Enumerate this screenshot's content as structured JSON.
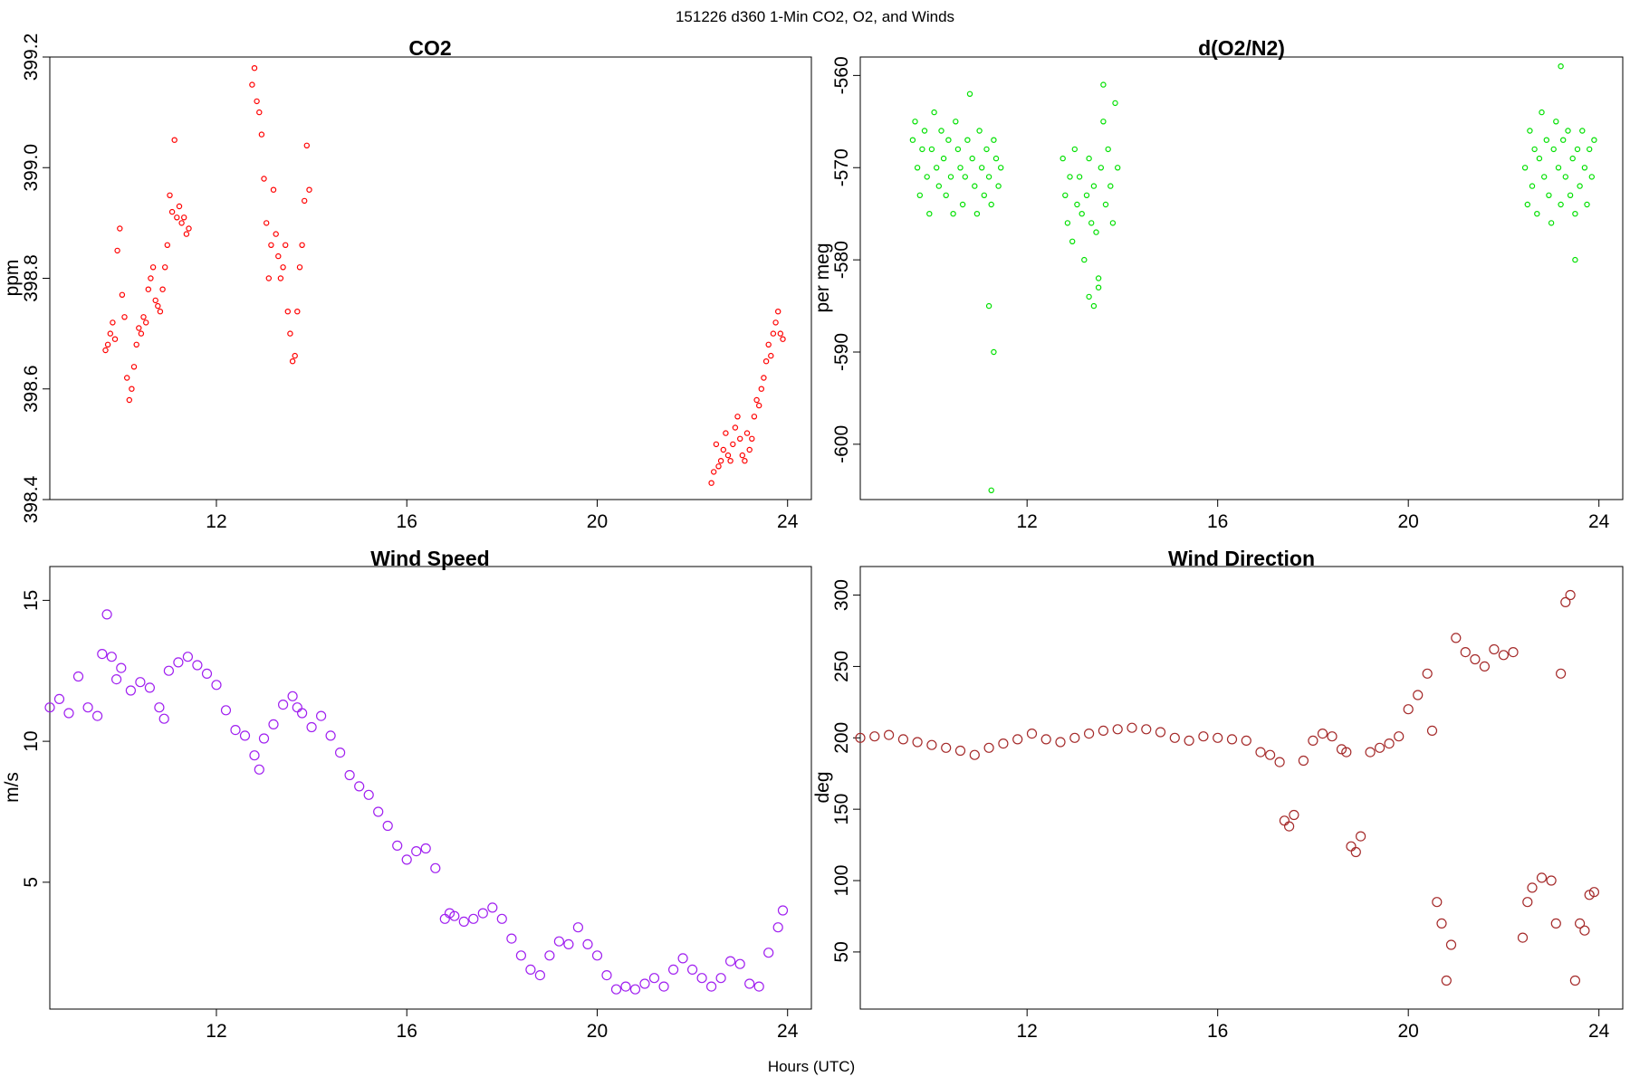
{
  "figure": {
    "suptitle": "151226   d360   1-Min CO2, O2, and Winds",
    "xlabel": "Hours (UTC)"
  },
  "chart_data": [
    {
      "id": "co2",
      "type": "scatter",
      "title": "CO2",
      "xlabel": "",
      "ylabel": "ppm",
      "xlim": [
        8.5,
        24.5
      ],
      "ylim": [
        398.4,
        399.2
      ],
      "xticks": [
        12,
        16,
        20,
        24
      ],
      "yticks": [
        398.4,
        398.6,
        398.8,
        399.0,
        399.2
      ],
      "ytick_labels": [
        "398.4",
        "398.6",
        "398.8",
        "399.0",
        "399.2"
      ],
      "ytick_rotation": "vertical",
      "marker_color": "#ff0000",
      "highlight_color": "#000000",
      "marker": "small-open-circle",
      "series": [
        {
          "x": [
            9.67,
            9.72,
            9.77,
            9.82,
            9.87,
            9.92,
            9.97,
            10.02,
            10.07,
            10.12,
            10.17,
            10.22,
            10.27,
            10.32,
            10.37,
            10.42,
            10.47,
            10.52,
            10.57,
            10.62,
            10.67,
            10.72,
            10.77,
            10.82,
            10.87,
            10.92,
            10.97,
            11.02,
            11.07,
            11.12,
            11.17,
            11.22,
            11.27,
            11.32,
            11.37,
            11.42,
            12.75,
            12.8,
            12.85,
            12.9,
            12.95,
            13.0,
            13.05,
            13.1,
            13.15,
            13.2,
            13.25,
            13.3,
            13.35,
            13.4,
            13.45,
            13.5,
            13.55,
            13.6,
            13.65,
            13.7,
            13.75,
            13.8,
            13.85,
            13.9,
            13.95,
            22.4,
            22.45,
            22.5,
            22.55,
            22.6,
            22.65,
            22.7,
            22.75,
            22.8,
            22.85,
            22.9,
            22.95,
            23.0,
            23.05,
            23.1,
            23.15,
            23.2,
            23.25,
            23.3,
            23.35,
            23.4,
            23.45,
            23.5,
            23.55,
            23.6,
            23.65,
            23.7,
            23.75,
            23.8,
            23.85,
            23.9
          ],
          "y": [
            398.67,
            398.68,
            398.7,
            398.72,
            398.69,
            398.85,
            398.89,
            398.77,
            398.73,
            398.62,
            398.58,
            398.6,
            398.64,
            398.68,
            398.71,
            398.7,
            398.73,
            398.72,
            398.78,
            398.8,
            398.82,
            398.76,
            398.75,
            398.74,
            398.78,
            398.82,
            398.86,
            398.95,
            398.92,
            399.05,
            398.91,
            398.93,
            398.9,
            398.91,
            398.88,
            398.89,
            399.15,
            399.18,
            399.12,
            399.1,
            399.06,
            398.98,
            398.9,
            398.8,
            398.86,
            398.96,
            398.88,
            398.84,
            398.8,
            398.82,
            398.86,
            398.74,
            398.7,
            398.65,
            398.66,
            398.74,
            398.82,
            398.86,
            398.94,
            399.04,
            398.96,
            398.43,
            398.45,
            398.5,
            398.46,
            398.47,
            398.49,
            398.52,
            398.48,
            398.47,
            398.5,
            398.53,
            398.55,
            398.51,
            398.48,
            398.47,
            398.52,
            398.49,
            398.51,
            398.55,
            398.58,
            398.57,
            398.6,
            398.62,
            398.65,
            398.68,
            398.66,
            398.7,
            398.72,
            398.74,
            398.7,
            398.69
          ]
        }
      ]
    },
    {
      "id": "o2n2",
      "type": "scatter",
      "title": "d(O2/N2)",
      "xlabel": "",
      "ylabel": "per meg",
      "xlim": [
        8.5,
        24.5
      ],
      "ylim": [
        -606,
        -558
      ],
      "xticks": [
        12,
        16,
        20,
        24
      ],
      "yticks": [
        -600,
        -590,
        -580,
        -570,
        -560
      ],
      "ytick_labels": [
        "-600",
        "-590",
        "-580",
        "-570",
        "-560"
      ],
      "ytick_rotation": "vertical",
      "marker_color": "#00e000",
      "highlight_color": "#000000",
      "marker": "small-open-circle",
      "series": [
        {
          "x": [
            9.6,
            9.65,
            9.7,
            9.75,
            9.8,
            9.85,
            9.9,
            9.95,
            10.0,
            10.05,
            10.1,
            10.15,
            10.2,
            10.25,
            10.3,
            10.35,
            10.4,
            10.45,
            10.5,
            10.55,
            10.6,
            10.65,
            10.7,
            10.75,
            10.8,
            10.85,
            10.9,
            10.95,
            11.0,
            11.05,
            11.1,
            11.15,
            11.2,
            11.25,
            11.3,
            11.35,
            11.4,
            11.45,
            11.2,
            11.3,
            11.25,
            12.75,
            12.8,
            12.85,
            12.9,
            12.95,
            13.0,
            13.05,
            13.1,
            13.15,
            13.2,
            13.25,
            13.3,
            13.35,
            13.4,
            13.45,
            13.5,
            13.55,
            13.6,
            13.65,
            13.7,
            13.75,
            13.8,
            13.85,
            13.9,
            13.5,
            13.4,
            13.3,
            13.6,
            22.45,
            22.5,
            22.55,
            22.6,
            22.65,
            22.7,
            22.75,
            22.8,
            22.85,
            22.9,
            22.95,
            23.0,
            23.05,
            23.1,
            23.15,
            23.2,
            23.25,
            23.3,
            23.35,
            23.4,
            23.45,
            23.5,
            23.55,
            23.6,
            23.65,
            23.7,
            23.75,
            23.8,
            23.85,
            23.9,
            23.5,
            23.2
          ],
          "y": [
            -567,
            -565,
            -570,
            -573,
            -568,
            -566,
            -571,
            -575,
            -568,
            -564,
            -570,
            -572,
            -566,
            -569,
            -573,
            -567,
            -571,
            -575,
            -565,
            -568,
            -570,
            -574,
            -571,
            -567,
            -562,
            -569,
            -572,
            -575,
            -566,
            -570,
            -573,
            -568,
            -571,
            -574,
            -567,
            -569,
            -572,
            -570,
            -585,
            -590,
            -605,
            -569,
            -573,
            -576,
            -571,
            -578,
            -568,
            -574,
            -571,
            -575,
            -580,
            -573,
            -569,
            -576,
            -572,
            -577,
            -582,
            -570,
            -565,
            -574,
            -568,
            -572,
            -576,
            -563,
            -570,
            -583,
            -585,
            -584,
            -561,
            -570,
            -574,
            -566,
            -572,
            -568,
            -575,
            -569,
            -564,
            -571,
            -567,
            -573,
            -576,
            -568,
            -565,
            -570,
            -574,
            -567,
            -571,
            -566,
            -573,
            -569,
            -575,
            -568,
            -572,
            -566,
            -570,
            -574,
            -568,
            -571,
            -567,
            -580,
            -559
          ]
        }
      ]
    },
    {
      "id": "wind-speed",
      "type": "scatter",
      "title": "Wind Speed",
      "xlabel": "",
      "ylabel": "m/s",
      "xlim": [
        8.5,
        24.5
      ],
      "ylim": [
        0.5,
        16.2
      ],
      "xticks": [
        12,
        16,
        20,
        24
      ],
      "yticks": [
        5,
        10,
        15
      ],
      "ytick_labels": [
        "5",
        "10",
        "15"
      ],
      "ytick_rotation": "horizontal",
      "marker_color": "#a020f0",
      "marker": "open-circle",
      "series": [
        {
          "x": [
            8.5,
            8.7,
            8.9,
            9.1,
            9.3,
            9.5,
            9.6,
            9.7,
            9.8,
            9.9,
            10.0,
            10.2,
            10.4,
            10.6,
            10.8,
            10.9,
            11.0,
            11.2,
            11.4,
            11.6,
            11.8,
            12.0,
            12.2,
            12.4,
            12.6,
            12.8,
            12.9,
            13.0,
            13.2,
            13.4,
            13.6,
            13.7,
            13.8,
            14.0,
            14.2,
            14.4,
            14.6,
            14.8,
            15.0,
            15.2,
            15.4,
            15.6,
            15.8,
            16.0,
            16.2,
            16.4,
            16.6,
            16.8,
            16.9,
            17.0,
            17.2,
            17.4,
            17.6,
            17.8,
            18.0,
            18.2,
            18.4,
            18.6,
            18.8,
            19.0,
            19.2,
            19.4,
            19.6,
            19.8,
            20.0,
            20.2,
            20.4,
            20.6,
            20.8,
            21.0,
            21.2,
            21.4,
            21.6,
            21.8,
            22.0,
            22.2,
            22.4,
            22.6,
            22.8,
            23.0,
            23.2,
            23.4,
            23.6,
            23.8,
            23.9
          ],
          "y": [
            11.2,
            11.5,
            11.0,
            12.3,
            11.2,
            10.9,
            13.1,
            14.5,
            13.0,
            12.2,
            12.6,
            11.8,
            12.1,
            11.9,
            11.2,
            10.8,
            12.5,
            12.8,
            13.0,
            12.7,
            12.4,
            12.0,
            11.1,
            10.4,
            10.2,
            9.5,
            9.0,
            10.1,
            10.6,
            11.3,
            11.6,
            11.2,
            11.0,
            10.5,
            10.9,
            10.2,
            9.6,
            8.8,
            8.4,
            8.1,
            7.5,
            7.0,
            6.3,
            5.8,
            6.1,
            6.2,
            5.5,
            3.7,
            3.9,
            3.8,
            3.6,
            3.7,
            3.9,
            4.1,
            3.7,
            3.0,
            2.4,
            1.9,
            1.7,
            2.4,
            2.9,
            2.8,
            3.4,
            2.8,
            2.4,
            1.7,
            1.2,
            1.3,
            1.2,
            1.4,
            1.6,
            1.3,
            1.9,
            2.3,
            1.9,
            1.6,
            1.3,
            1.6,
            2.2,
            2.1,
            1.4,
            1.3,
            2.5,
            3.4,
            4.0
          ]
        }
      ]
    },
    {
      "id": "wind-direction",
      "type": "scatter",
      "title": "Wind Direction",
      "xlabel": "",
      "ylabel": "deg",
      "xlim": [
        8.5,
        24.5
      ],
      "ylim": [
        10,
        320
      ],
      "xticks": [
        12,
        16,
        20,
        24
      ],
      "yticks": [
        50,
        100,
        150,
        200,
        250,
        300
      ],
      "ytick_labels": [
        "50",
        "100",
        "150",
        "200",
        "250",
        "300"
      ],
      "ytick_rotation": "vertical",
      "marker_color": "#a52a2a",
      "marker": "open-circle",
      "series": [
        {
          "x": [
            8.5,
            8.8,
            9.1,
            9.4,
            9.7,
            10.0,
            10.3,
            10.6,
            10.9,
            11.2,
            11.5,
            11.8,
            12.1,
            12.4,
            12.7,
            13.0,
            13.3,
            13.6,
            13.9,
            14.2,
            14.5,
            14.8,
            15.1,
            15.4,
            15.7,
            16.0,
            16.3,
            16.6,
            16.9,
            17.1,
            17.3,
            17.4,
            17.5,
            17.6,
            17.8,
            18.0,
            18.2,
            18.4,
            18.6,
            18.7,
            18.8,
            18.9,
            19.0,
            19.2,
            19.4,
            19.6,
            19.8,
            20.0,
            20.2,
            20.4,
            20.5,
            20.6,
            20.7,
            20.8,
            20.9,
            21.0,
            21.2,
            21.4,
            21.6,
            21.8,
            22.0,
            22.2,
            22.4,
            22.5,
            22.6,
            22.8,
            23.0,
            23.1,
            23.2,
            23.3,
            23.4,
            23.5,
            23.6,
            23.7,
            23.8,
            23.9
          ],
          "y": [
            200,
            201,
            202,
            199,
            197,
            195,
            193,
            191,
            188,
            193,
            196,
            199,
            203,
            199,
            197,
            200,
            203,
            205,
            206,
            207,
            206,
            204,
            200,
            198,
            201,
            200,
            199,
            198,
            190,
            188,
            183,
            142,
            138,
            146,
            184,
            198,
            203,
            201,
            192,
            190,
            124,
            120,
            131,
            190,
            193,
            196,
            201,
            220,
            230,
            245,
            205,
            85,
            70,
            30,
            55,
            270,
            260,
            255,
            250,
            262,
            258,
            260,
            60,
            85,
            95,
            102,
            100,
            70,
            245,
            295,
            300,
            30,
            70,
            65,
            90,
            92
          ]
        }
      ]
    }
  ]
}
